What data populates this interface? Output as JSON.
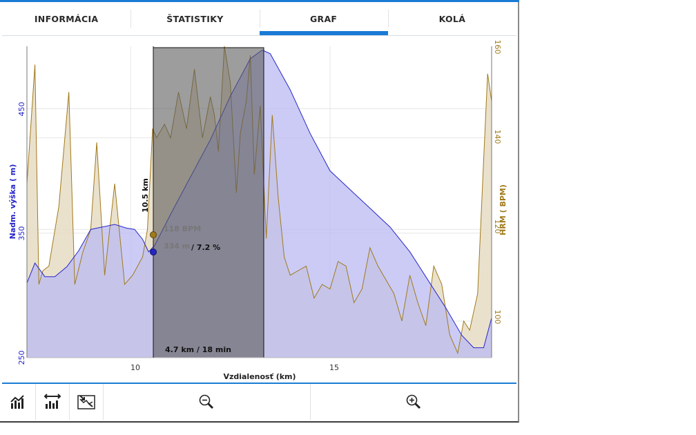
{
  "tabs": [
    {
      "label": "INFORMÁCIA",
      "active": false
    },
    {
      "label": "ŠTATISTIKY",
      "active": false
    },
    {
      "label": "GRAF",
      "active": true
    },
    {
      "label": "KOLÁ",
      "active": false
    }
  ],
  "colors": {
    "accent": "#1a7bd6",
    "elevation_line": "#2626c8",
    "elevation_fill": "#b9b9f2",
    "hr_line": "#a07a1a",
    "hr_fill": "#e6dcc4",
    "selection": "#5c5c5c"
  },
  "chart": {
    "x_axis_label": "Vzdialenosť (km)",
    "left_axis_label": "Nadm. výška ( m)",
    "right_axis_label": "HRM ( BPM)",
    "x_ticks": [
      "10",
      "15"
    ],
    "left_ticks": [
      "250",
      "350",
      "450"
    ],
    "right_ticks": [
      "100",
      "120",
      "140",
      "160"
    ],
    "cursor_distance": "10.5 km",
    "hr_readout": "118  BPM",
    "elevation_readout": "334 m",
    "grade_readout": "/ 7.2 %",
    "selection_summary": "4.7 km / 18 min"
  },
  "toolbar": {
    "buttons": [
      {
        "icon": "chart-type-icon"
      },
      {
        "icon": "chart-options-icon"
      },
      {
        "icon": "fit-range-icon"
      }
    ],
    "zoom_out_icon": "zoom-out-icon",
    "zoom_in_icon": "zoom-in-icon"
  },
  "chart_data": {
    "type": "area",
    "xlabel": "Vzdialenosť (km)",
    "xlim": [
      7.4,
      19.05
    ],
    "grid": true,
    "series": [
      {
        "name": "Nadm. výška ( m)",
        "axis": "left",
        "ylim": [
          250,
          500
        ],
        "x": [
          7.4,
          7.6,
          7.85,
          8.1,
          8.4,
          8.7,
          9.0,
          9.3,
          9.6,
          9.9,
          10.1,
          10.3,
          10.45,
          10.6,
          11.0,
          11.5,
          12.0,
          12.5,
          13.0,
          13.3,
          13.5,
          14.0,
          14.5,
          15.0,
          15.5,
          16.0,
          16.5,
          17.0,
          17.5,
          17.9,
          18.3,
          18.6,
          18.85,
          19.05
        ],
        "values": [
          310,
          326,
          315,
          315,
          323,
          336,
          353,
          355,
          357,
          354,
          353,
          345,
          335,
          340,
          365,
          395,
          425,
          460,
          490,
          497,
          494,
          465,
          430,
          400,
          385,
          370,
          355,
          335,
          310,
          290,
          268,
          258,
          258,
          282
        ]
      },
      {
        "name": "HRM ( BPM)",
        "axis": "right",
        "ylim": [
          92,
          160
        ],
        "x": [
          7.4,
          7.6,
          7.7,
          7.8,
          7.95,
          8.2,
          8.45,
          8.6,
          8.8,
          9.0,
          9.15,
          9.35,
          9.6,
          9.85,
          10.05,
          10.3,
          10.42,
          10.55,
          10.65,
          10.85,
          11.0,
          11.2,
          11.4,
          11.6,
          11.8,
          12.0,
          12.1,
          12.2,
          12.35,
          12.5,
          12.65,
          12.75,
          12.9,
          13.0,
          13.1,
          13.25,
          13.4,
          13.55,
          13.7,
          13.85,
          14.0,
          14.2,
          14.4,
          14.6,
          14.8,
          15.0,
          15.2,
          15.4,
          15.6,
          15.8,
          16.0,
          16.2,
          16.4,
          16.6,
          16.8,
          17.0,
          17.2,
          17.4,
          17.6,
          17.8,
          18.0,
          18.2,
          18.35,
          18.5,
          18.7,
          18.85,
          18.95,
          19.05
        ],
        "values": [
          130,
          156,
          108,
          111,
          112,
          125,
          150,
          108,
          115,
          120,
          139,
          110,
          130,
          108,
          110,
          114,
          120,
          142,
          140,
          143,
          140,
          150,
          142,
          155,
          140,
          149,
          145,
          137,
          160,
          152,
          128,
          141,
          148,
          158,
          132,
          147,
          118,
          145,
          127,
          114,
          110,
          111,
          112,
          105,
          108,
          107,
          113,
          112,
          104,
          107,
          116,
          112,
          109,
          106,
          100,
          110,
          104,
          99,
          112,
          108,
          97,
          93,
          100,
          98,
          106,
          135,
          154,
          148
        ]
      }
    ]
  }
}
